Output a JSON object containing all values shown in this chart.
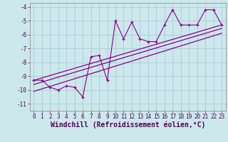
{
  "title": "",
  "xlabel": "Windchill (Refroidissement éolien,°C)",
  "x_data": [
    0,
    1,
    2,
    3,
    4,
    5,
    6,
    7,
    8,
    9,
    10,
    11,
    12,
    13,
    14,
    15,
    16,
    17,
    18,
    19,
    20,
    21,
    22,
    23
  ],
  "y_main": [
    -9.3,
    -9.3,
    -9.8,
    -10.0,
    -9.7,
    -9.8,
    -10.5,
    -7.6,
    -7.5,
    -9.3,
    -5.0,
    -6.3,
    -5.1,
    -6.3,
    -6.5,
    -6.5,
    -5.3,
    -4.2,
    -5.3,
    -5.3,
    -5.3,
    -4.2,
    -4.2,
    -5.3
  ],
  "trend1_x": [
    0,
    23
  ],
  "trend1_y": [
    -9.3,
    -5.3
  ],
  "trend2_x": [
    0,
    23
  ],
  "trend2_y": [
    -9.6,
    -5.55
  ],
  "trend3_x": [
    0,
    23
  ],
  "trend3_y": [
    -10.1,
    -5.9
  ],
  "xlim": [
    -0.5,
    23.5
  ],
  "ylim": [
    -11.5,
    -3.7
  ],
  "yticks": [
    -11,
    -10,
    -9,
    -8,
    -7,
    -6,
    -5,
    -4
  ],
  "xticks": [
    0,
    1,
    2,
    3,
    4,
    5,
    6,
    7,
    8,
    9,
    10,
    11,
    12,
    13,
    14,
    15,
    16,
    17,
    18,
    19,
    20,
    21,
    22,
    23
  ],
  "line_color": "#880088",
  "bg_color": "#cce8ec",
  "grid_color": "#aaccd4",
  "tick_fontsize": 5.5,
  "xlabel_fontsize": 7.0
}
